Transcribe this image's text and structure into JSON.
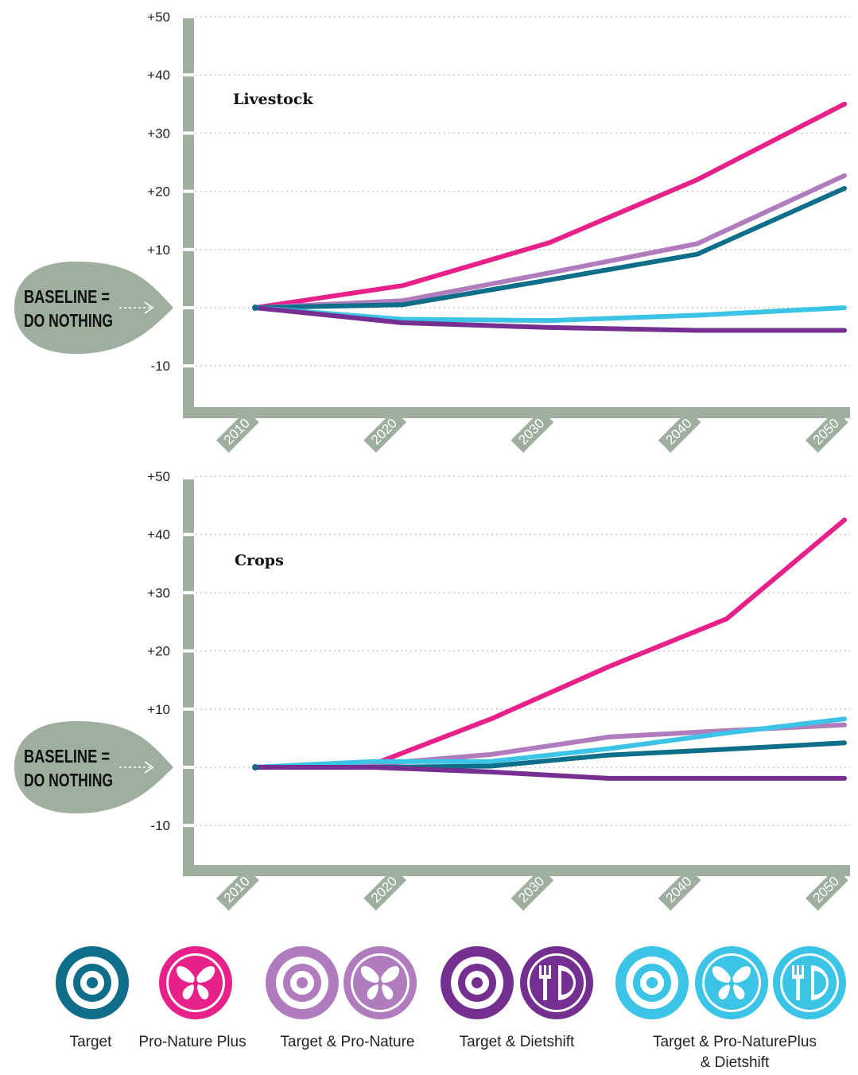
{
  "chart_data": [
    {
      "type": "line",
      "title": "Livestock",
      "x": [
        2010,
        2020,
        2030,
        2040,
        2050
      ],
      "x_tick_labels": [
        "2010",
        "2020",
        "2030",
        "2040",
        "2050"
      ],
      "y_tick_labels": [
        "+50",
        "+40",
        "+30",
        "+20",
        "+10",
        "-10"
      ],
      "y_ticks": [
        50,
        40,
        30,
        20,
        10,
        -10
      ],
      "ylim": [
        -18,
        50
      ],
      "grid": true,
      "baseline_label": [
        "BASELINE =",
        "DO NOTHING"
      ],
      "series": [
        {
          "key": "pro_nature_plus",
          "color": "#e8218a",
          "points": [
            [
              2010,
              0
            ],
            [
              2020,
              3.8
            ],
            [
              2030,
              11.2
            ],
            [
              2040,
              22
            ],
            [
              2050,
              35
            ]
          ]
        },
        {
          "key": "target_pro_nature",
          "color": "#b07cbd",
          "points": [
            [
              2010,
              0
            ],
            [
              2020,
              1.2
            ],
            [
              2030,
              6
            ],
            [
              2040,
              11
            ],
            [
              2050,
              22.7
            ]
          ]
        },
        {
          "key": "target",
          "color": "#0f6e8a",
          "points": [
            [
              2010,
              0
            ],
            [
              2020,
              0.5
            ],
            [
              2030,
              4.8
            ],
            [
              2040,
              9.2
            ],
            [
              2050,
              20.5
            ]
          ]
        },
        {
          "key": "target_pro_natureplus_dietshift",
          "color": "#3bc4e6",
          "points": [
            [
              2010,
              0
            ],
            [
              2020,
              -2
            ],
            [
              2030,
              -2.2
            ],
            [
              2040,
              -1.3
            ],
            [
              2050,
              0
            ]
          ]
        },
        {
          "key": "target_dietshift",
          "color": "#742f91",
          "points": [
            [
              2010,
              0
            ],
            [
              2020,
              -2.6
            ],
            [
              2030,
              -3.4
            ],
            [
              2040,
              -3.9
            ],
            [
              2050,
              -3.9
            ]
          ]
        }
      ]
    },
    {
      "type": "line",
      "title": "Crops",
      "x": [
        2010,
        2020,
        2030,
        2040,
        2050
      ],
      "x_tick_labels": [
        "2010",
        "2020",
        "2030",
        "2040",
        "2050"
      ],
      "y_tick_labels": [
        "+50",
        "+40",
        "+30",
        "+20",
        "+10",
        "-10"
      ],
      "y_ticks": [
        50,
        40,
        30,
        20,
        10,
        -10
      ],
      "ylim": [
        -18,
        50
      ],
      "grid": true,
      "baseline_label": [
        "BASELINE =",
        "DO NOTHING"
      ],
      "series": [
        {
          "key": "pro_nature_plus",
          "color": "#e8218a",
          "points": [
            [
              2010,
              0
            ],
            [
              2018.5,
              1
            ],
            [
              2026,
              8.3
            ],
            [
              2034,
              17.3
            ],
            [
              2042,
              25.5
            ],
            [
              2050,
              42.5
            ]
          ]
        },
        {
          "key": "target_pro_nature",
          "color": "#b07cbd",
          "points": [
            [
              2010,
              0
            ],
            [
              2018,
              0.5
            ],
            [
              2026,
              2.2
            ],
            [
              2034,
              5.2
            ],
            [
              2042,
              6.3
            ],
            [
              2050,
              7.3
            ]
          ]
        },
        {
          "key": "target_pro_natureplus_dietshift",
          "color": "#3bc4e6",
          "points": [
            [
              2010,
              0
            ],
            [
              2018,
              1
            ],
            [
              2026,
              1
            ],
            [
              2034,
              3.2
            ],
            [
              2042,
              5.9
            ],
            [
              2050,
              8.3
            ]
          ]
        },
        {
          "key": "target",
          "color": "#0f6e8a",
          "points": [
            [
              2010,
              0
            ],
            [
              2018,
              0
            ],
            [
              2026,
              0.2
            ],
            [
              2034,
              2.1
            ],
            [
              2042,
              3.1
            ],
            [
              2050,
              4.2
            ]
          ]
        },
        {
          "key": "target_dietshift",
          "color": "#742f91",
          "points": [
            [
              2010,
              0
            ],
            [
              2018,
              0
            ],
            [
              2026,
              -0.8
            ],
            [
              2034,
              -1.9
            ],
            [
              2042,
              -1.9
            ],
            [
              2050,
              -1.9
            ]
          ]
        }
      ]
    }
  ],
  "colors": {
    "axis": "#9eae9f",
    "grid": "#bbbbbb",
    "baseline_drop": "#9eae9f"
  },
  "legend": [
    {
      "label": [
        "Target"
      ],
      "icons": [
        {
          "type": "target-icon",
          "color": "#0f6e8a"
        }
      ]
    },
    {
      "label": [
        "Pro-Nature Plus"
      ],
      "icons": [
        {
          "type": "butterfly-icon",
          "color": "#e8218a"
        }
      ]
    },
    {
      "label": [
        "Target & Pro-Nature"
      ],
      "icons": [
        {
          "type": "target-icon",
          "color": "#b07cbd"
        },
        {
          "type": "butterfly-icon",
          "color": "#b07cbd"
        }
      ]
    },
    {
      "label": [
        "Target & Dietshift"
      ],
      "icons": [
        {
          "type": "target-icon",
          "color": "#742f91"
        },
        {
          "type": "plate-icon",
          "color": "#742f91"
        }
      ]
    },
    {
      "label": [
        "Target & Pro-NaturePlus",
        "& Dietshift"
      ],
      "icons": [
        {
          "type": "target-icon",
          "color": "#3bc4e6"
        },
        {
          "type": "butterfly-icon",
          "color": "#3bc4e6"
        },
        {
          "type": "plate-icon",
          "color": "#3bc4e6"
        }
      ]
    }
  ]
}
